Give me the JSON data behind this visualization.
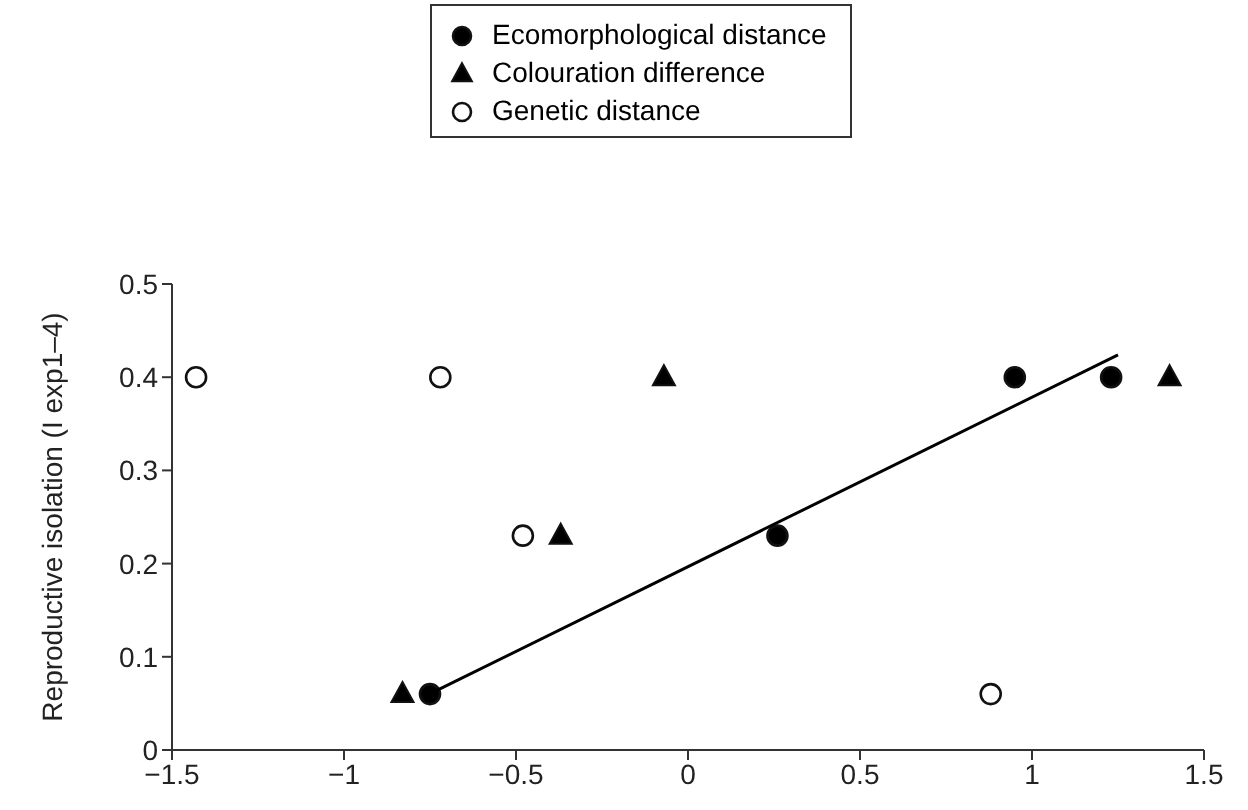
{
  "chart_data": {
    "type": "scatter",
    "ylabel": "Reproductive isolation (I exp1–4)",
    "xlim": [
      -1.5,
      1.5
    ],
    "xticks": [
      {
        "value": -1.5,
        "label": "−1.5"
      },
      {
        "value": -1,
        "label": "−1"
      },
      {
        "value": -0.5,
        "label": "−0.5"
      },
      0,
      0.5,
      1,
      1.5
    ],
    "ylim": [
      0,
      0.5
    ],
    "yticks": [
      0,
      0.1,
      0.2,
      0.3,
      0.4,
      0.5
    ],
    "grid": false,
    "legend": "top",
    "series": [
      {
        "name": "Ecomorphological distance",
        "color": "#000000",
        "marker": "circle",
        "x": [
          -0.75,
          0.95,
          1.23,
          0.26
        ],
        "values": [
          0.06,
          0.4,
          0.4,
          0.23
        ]
      },
      {
        "name": "Colouration difference",
        "color": "#000000",
        "marker": "triangle",
        "x": [
          -0.83,
          -0.37,
          -0.07,
          1.4
        ],
        "values": [
          0.06,
          0.23,
          0.4,
          0.4
        ]
      },
      {
        "name": "Genetic distance",
        "color": "#ffffff",
        "marker": "circle",
        "x": [
          -1.43,
          -0.72,
          -0.48,
          0.88
        ],
        "values": [
          0.4,
          0.4,
          0.23,
          0.06
        ]
      },
      {
        "type": "line",
        "color": "#000000",
        "x": [
          -0.73,
          1.25
        ],
        "values": [
          0.064,
          0.424
        ]
      }
    ]
  }
}
